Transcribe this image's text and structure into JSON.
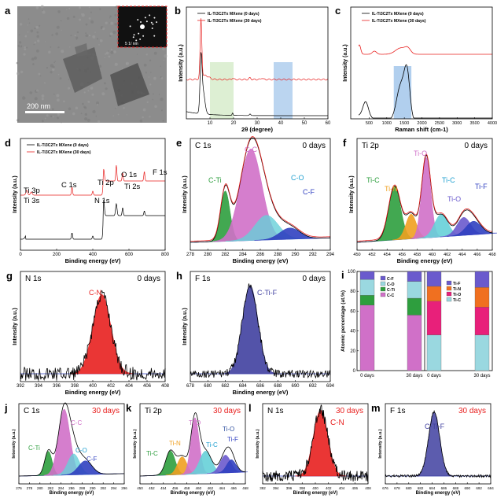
{
  "panels": {
    "a": {
      "letter": "a",
      "scalebar": "200 nm",
      "inset_scale": "5 1/ nm"
    },
    "b": {
      "letter": "b",
      "xlabel": "2θ (degree)",
      "ylabel": "Intensity (a.u.)",
      "xticks": [
        "10",
        "20",
        "30",
        "40",
        "50",
        "60"
      ],
      "legend": [
        "IL-Ti3C2Tx MXene (0 days)",
        "IL-Ti3C2Tx MXene (30 days)"
      ]
    },
    "c": {
      "letter": "c",
      "xlabel": "Raman shift (cm-1)",
      "ylabel": "Intensity (a.u.)",
      "xticks": [
        "500",
        "1000",
        "1500",
        "2000",
        "2500",
        "3000",
        "3500",
        "4000"
      ],
      "legend": [
        "IL-Ti3C2Tx MXene (0 days)",
        "IL-Ti3C2Tx MXene (30 days)"
      ]
    },
    "d": {
      "letter": "d",
      "xlabel": "Binding energy (eV)",
      "ylabel": "Intensity (a.u.)",
      "xticks": [
        "0",
        "200",
        "400",
        "600",
        "800"
      ],
      "legend": [
        "IL-Ti3C2Tx MXene (0 days)",
        "IL-Ti3C2Tx MXene (30 days)"
      ],
      "peaks": [
        "Ti 3p",
        "Ti 3s",
        "C 1s",
        "N 1s",
        "Ti 2p",
        "O 1s",
        "Ti 2s",
        "F 1s"
      ]
    },
    "e": {
      "letter": "e",
      "title": "C 1s",
      "days": "0 days",
      "xlabel": "Binding energy (eV)",
      "ylabel": "Intensity (a.u.)",
      "xticks": [
        "278",
        "280",
        "282",
        "284",
        "286",
        "288",
        "290",
        "292",
        "294"
      ],
      "labels": [
        "C-Ti",
        "C-C",
        "C-O",
        "C-F"
      ]
    },
    "f": {
      "letter": "f",
      "title": "Ti 2p",
      "days": "0 days",
      "xlabel": "Binding energy (eV)",
      "ylabel": "Intensity (a.u.)",
      "xticks": [
        "450",
        "452",
        "454",
        "456",
        "458",
        "460",
        "462",
        "464",
        "466",
        "468"
      ],
      "labels": [
        "Ti-C",
        "Ti-N",
        "Ti-O",
        "Ti-C",
        "Ti-O",
        "Ti-F"
      ]
    },
    "g": {
      "letter": "g",
      "title": "N 1s",
      "days": "0 days",
      "xlabel": "Binding energy (eV)",
      "ylabel": "Intensity (a.u.)",
      "xticks": [
        "392",
        "394",
        "396",
        "398",
        "400",
        "402",
        "404",
        "406",
        "408"
      ],
      "labels": [
        "C-N"
      ]
    },
    "h": {
      "letter": "h",
      "title": "F 1s",
      "days": "0 days",
      "xlabel": "Binding energy (eV)",
      "ylabel": "Intensity (a.u.)",
      "xticks": [
        "678",
        "680",
        "682",
        "684",
        "686",
        "688",
        "690",
        "692",
        "694"
      ],
      "labels": [
        "C-Ti-F"
      ]
    },
    "i": {
      "letter": "i",
      "ylabel": "Atomic percentage (at.%)",
      "yticks": [
        "0",
        "20",
        "40",
        "60",
        "80",
        "100"
      ],
      "xticks": [
        "0 days",
        "30 days",
        "0 days",
        "30 days"
      ],
      "legendC": [
        "C-F",
        "C-O",
        "C-Ti",
        "C-C"
      ],
      "legendTi": [
        "Ti-F",
        "Ti-N",
        "Ti-O",
        "Ti-C"
      ]
    },
    "j": {
      "letter": "j",
      "title": "C 1s",
      "days": "30 days",
      "xlabel": "Binding energy (eV)",
      "ylabel": "Intensity (a.u.)",
      "xticks": [
        "276",
        "278",
        "280",
        "282",
        "284",
        "286",
        "288",
        "290",
        "292",
        "294",
        "296"
      ],
      "labels": [
        "C-Ti",
        "C-C",
        "C-O",
        "C-F"
      ]
    },
    "k": {
      "letter": "k",
      "title": "Ti 2p",
      "days": "30 days",
      "xlabel": "Binding energy (eV)",
      "ylabel": "Intensity (a.u.)",
      "xticks": [
        "450",
        "452",
        "454",
        "456",
        "458",
        "460",
        "462",
        "464",
        "466",
        "468"
      ],
      "labels": [
        "Ti-C",
        "Ti-N",
        "Ti-O",
        "Ti-C",
        "Ti-O",
        "Ti-F"
      ]
    },
    "l": {
      "letter": "l",
      "title": "N 1s",
      "days": "30 days",
      "xlabel": "Binding energy (eV)",
      "ylabel": "Intensity (a.u.)",
      "xticks": [
        "392",
        "394",
        "396",
        "398",
        "400",
        "402",
        "404",
        "406",
        "408"
      ],
      "labels": [
        "C-N"
      ]
    },
    "m": {
      "letter": "m",
      "title": "F 1s",
      "days": "30 days",
      "xlabel": "Binding energy (eV)",
      "ylabel": "Intensity (a.u.)",
      "xticks": [
        "676",
        "678",
        "680",
        "682",
        "684",
        "686",
        "688",
        "690",
        "692",
        "694"
      ],
      "labels": [
        "C-Ti-F"
      ]
    }
  },
  "colors": {
    "black": "#000000",
    "red": "#e8201f",
    "green": "#2e9e3e",
    "pink": "#d070c8",
    "cyan": "#66d0d8",
    "blue": "#3040c0",
    "orange": "#f0a020",
    "purple": "#6a5acd",
    "navy": "#4040a0"
  },
  "chart_data": [
    {
      "type": "line",
      "panel": "b",
      "xlim": [
        0,
        60
      ],
      "series": [
        {
          "name": "IL-Ti3C2Tx MXene (0 days)"
        },
        {
          "name": "IL-Ti3C2Tx MXene (30 days)"
        }
      ]
    },
    {
      "type": "line",
      "panel": "c",
      "xlim": [
        0,
        4000
      ],
      "series": [
        {
          "name": "IL-Ti3C2Tx MXene (0 days)"
        },
        {
          "name": "IL-Ti3C2Tx MXene (30 days)"
        }
      ]
    },
    {
      "type": "line",
      "panel": "d",
      "xlim": [
        0,
        800
      ],
      "series": [
        {
          "name": "IL-Ti3C2Tx MXene (0 days)"
        },
        {
          "name": "IL-Ti3C2Tx MXene (30 days)"
        }
      ]
    },
    {
      "type": "bar",
      "panel": "i",
      "ylim": [
        0,
        100
      ],
      "categories": [
        "0 days",
        "30 days",
        "0 days",
        "30 days"
      ],
      "series": [
        {
          "name": "C-C",
          "values": [
            66,
            56,
            null,
            null
          ]
        },
        {
          "name": "C-Ti",
          "values": [
            10,
            17,
            null,
            null
          ]
        },
        {
          "name": "C-O",
          "values": [
            16,
            17,
            null,
            null
          ]
        },
        {
          "name": "C-F",
          "values": [
            8,
            10,
            null,
            null
          ]
        },
        {
          "name": "Ti-C",
          "values": [
            null,
            null,
            36,
            36
          ]
        },
        {
          "name": "Ti-O",
          "values": [
            null,
            null,
            34,
            28
          ]
        },
        {
          "name": "Ti-N",
          "values": [
            null,
            null,
            15,
            20
          ]
        },
        {
          "name": "Ti-F",
          "values": [
            null,
            null,
            15,
            16
          ]
        }
      ]
    }
  ]
}
